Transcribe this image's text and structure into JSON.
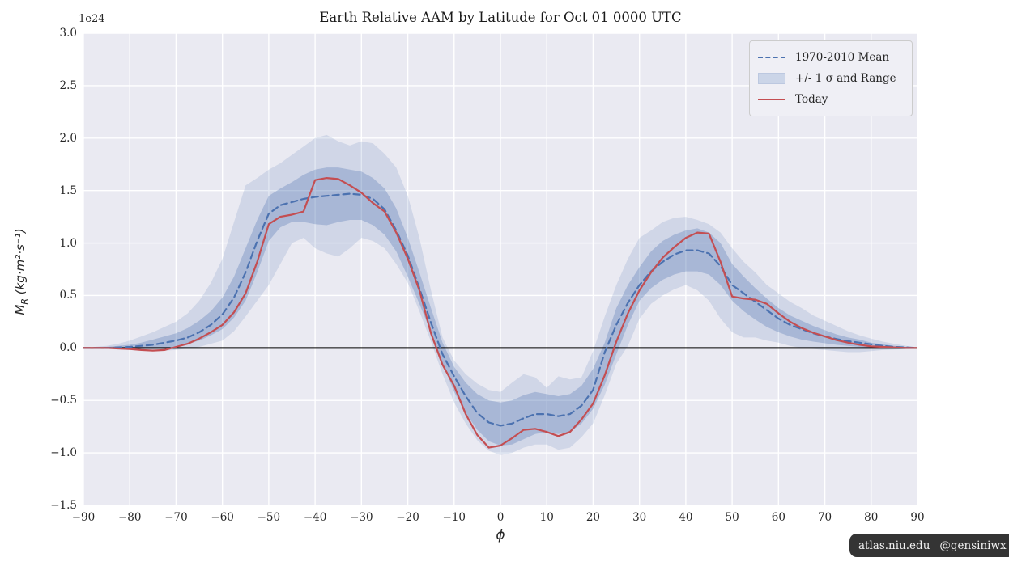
{
  "figure": {
    "watermark": {
      "site": "atlas.niu.edu",
      "handle": "@gensiniwx"
    }
  },
  "chart_data": {
    "type": "line",
    "title": "Earth Relative AAM by Latitude for Oct 01 0000 UTC",
    "xlabel": "ϕ",
    "ylabel_var": "M",
    "ylabel_sub": "R",
    "ylabel_units": " (kg·m²·s⁻¹)",
    "y_offset_label": "1e24",
    "xlim": [
      -90,
      90
    ],
    "ylim": [
      -1.5,
      3.0
    ],
    "grid": true,
    "legend_position": "upper right",
    "xticks": {
      "values": [
        -90,
        -80,
        -70,
        -60,
        -50,
        -40,
        -30,
        -20,
        -10,
        0,
        10,
        20,
        30,
        40,
        50,
        60,
        70,
        80,
        90
      ],
      "labels": [
        "−90",
        "−80",
        "−70",
        "−60",
        "−50",
        "−40",
        "−30",
        "−20",
        "−10",
        "0",
        "10",
        "20",
        "30",
        "40",
        "50",
        "60",
        "70",
        "80",
        "90"
      ]
    },
    "yticks": {
      "values": [
        3.0,
        2.5,
        2.0,
        1.5,
        1.0,
        0.5,
        0.0,
        -0.5,
        -1.0,
        -1.5
      ],
      "labels": [
        "3.0",
        "2.5",
        "2.0",
        "1.5",
        "1.0",
        "0.5",
        "0.0",
        "−0.5",
        "−1.0",
        "−1.5"
      ]
    },
    "x": [
      -90,
      -87.5,
      -85,
      -82.5,
      -80,
      -77.5,
      -75,
      -72.5,
      -70,
      -67.5,
      -65,
      -62.5,
      -60,
      -57.5,
      -55,
      -52.5,
      -50,
      -47.5,
      -45,
      -42.5,
      -40,
      -37.5,
      -35,
      -32.5,
      -30,
      -27.5,
      -25,
      -22.5,
      -20,
      -17.5,
      -15,
      -12.5,
      -10,
      -7.5,
      -5,
      -2.5,
      0,
      2.5,
      5,
      7.5,
      10,
      12.5,
      15,
      17.5,
      20,
      22.5,
      25,
      27.5,
      30,
      32.5,
      35,
      37.5,
      40,
      42.5,
      45,
      47.5,
      50,
      52.5,
      55,
      57.5,
      60,
      62.5,
      65,
      67.5,
      70,
      72.5,
      75,
      77.5,
      80,
      82.5,
      85,
      87.5,
      90
    ],
    "series": [
      {
        "name": "1970-2010 Mean",
        "style": "dashed",
        "color": "#4C72B0",
        "values": [
          0,
          0,
          0,
          0.005,
          0.01,
          0.02,
          0.03,
          0.05,
          0.07,
          0.1,
          0.15,
          0.22,
          0.32,
          0.48,
          0.72,
          1.02,
          1.28,
          1.36,
          1.39,
          1.42,
          1.44,
          1.45,
          1.46,
          1.47,
          1.46,
          1.42,
          1.32,
          1.12,
          0.88,
          0.57,
          0.24,
          -0.06,
          -0.27,
          -0.46,
          -0.62,
          -0.71,
          -0.74,
          -0.72,
          -0.67,
          -0.63,
          -0.63,
          -0.65,
          -0.63,
          -0.55,
          -0.4,
          -0.04,
          0.22,
          0.43,
          0.6,
          0.73,
          0.82,
          0.89,
          0.93,
          0.93,
          0.9,
          0.78,
          0.6,
          0.52,
          0.44,
          0.36,
          0.28,
          0.22,
          0.18,
          0.14,
          0.11,
          0.085,
          0.065,
          0.05,
          0.035,
          0.02,
          0.01,
          0.005,
          0
        ]
      },
      {
        "name": "Today",
        "style": "solid",
        "color": "#C44E52",
        "values": [
          0,
          0,
          0,
          -0.005,
          -0.01,
          -0.02,
          -0.025,
          -0.02,
          0.01,
          0.04,
          0.09,
          0.15,
          0.22,
          0.34,
          0.52,
          0.82,
          1.18,
          1.25,
          1.27,
          1.3,
          1.6,
          1.62,
          1.61,
          1.55,
          1.48,
          1.38,
          1.3,
          1.1,
          0.85,
          0.55,
          0.14,
          -0.16,
          -0.36,
          -0.63,
          -0.83,
          -0.95,
          -0.93,
          -0.86,
          -0.78,
          -0.77,
          -0.8,
          -0.84,
          -0.8,
          -0.68,
          -0.53,
          -0.26,
          0.06,
          0.33,
          0.55,
          0.72,
          0.86,
          0.96,
          1.05,
          1.1,
          1.09,
          0.82,
          0.49,
          0.47,
          0.46,
          0.42,
          0.33,
          0.25,
          0.19,
          0.145,
          0.11,
          0.075,
          0.05,
          0.03,
          0.015,
          0.01,
          0.005,
          0,
          0
        ]
      }
    ],
    "bands": [
      {
        "name": "Range",
        "upper": [
          0,
          0.01,
          0.02,
          0.04,
          0.07,
          0.11,
          0.15,
          0.2,
          0.25,
          0.33,
          0.45,
          0.62,
          0.85,
          1.2,
          1.55,
          1.62,
          1.7,
          1.76,
          1.84,
          1.92,
          2.0,
          2.03,
          1.97,
          1.93,
          1.97,
          1.95,
          1.85,
          1.72,
          1.45,
          1.05,
          0.55,
          0.1,
          -0.12,
          -0.25,
          -0.34,
          -0.4,
          -0.42,
          -0.33,
          -0.25,
          -0.28,
          -0.38,
          -0.27,
          -0.3,
          -0.28,
          -0.03,
          0.3,
          0.6,
          0.85,
          1.05,
          1.12,
          1.2,
          1.24,
          1.25,
          1.22,
          1.18,
          1.1,
          0.95,
          0.82,
          0.72,
          0.6,
          0.52,
          0.44,
          0.38,
          0.31,
          0.26,
          0.21,
          0.16,
          0.12,
          0.09,
          0.06,
          0.04,
          0.02,
          0
        ],
        "lower": [
          0,
          -0.005,
          -0.01,
          -0.015,
          -0.02,
          -0.025,
          -0.03,
          -0.025,
          -0.02,
          -0.005,
          0.01,
          0.04,
          0.07,
          0.16,
          0.3,
          0.45,
          0.6,
          0.8,
          1.0,
          1.05,
          0.95,
          0.9,
          0.87,
          0.95,
          1.05,
          1.02,
          0.95,
          0.8,
          0.62,
          0.35,
          0.06,
          -0.25,
          -0.52,
          -0.72,
          -0.88,
          -0.98,
          -1.02,
          -1.0,
          -0.95,
          -0.92,
          -0.92,
          -0.97,
          -0.95,
          -0.85,
          -0.72,
          -0.45,
          -0.15,
          0.02,
          0.28,
          0.42,
          0.5,
          0.56,
          0.6,
          0.55,
          0.45,
          0.28,
          0.15,
          0.1,
          0.1,
          0.07,
          0.05,
          0.02,
          0,
          -0.01,
          -0.02,
          -0.03,
          -0.04,
          -0.04,
          -0.03,
          -0.02,
          -0.015,
          -0.01,
          0
        ]
      },
      {
        "name": "+/- 1 sigma",
        "upper": [
          0,
          0.005,
          0.01,
          0.02,
          0.03,
          0.05,
          0.08,
          0.11,
          0.14,
          0.19,
          0.26,
          0.35,
          0.48,
          0.68,
          0.95,
          1.22,
          1.45,
          1.52,
          1.58,
          1.65,
          1.7,
          1.72,
          1.72,
          1.7,
          1.68,
          1.62,
          1.52,
          1.33,
          1.05,
          0.72,
          0.38,
          0.05,
          -0.18,
          -0.33,
          -0.44,
          -0.5,
          -0.52,
          -0.5,
          -0.45,
          -0.42,
          -0.44,
          -0.46,
          -0.44,
          -0.36,
          -0.2,
          0.05,
          0.38,
          0.6,
          0.77,
          0.92,
          1.02,
          1.08,
          1.12,
          1.14,
          1.1,
          1.0,
          0.8,
          0.68,
          0.57,
          0.47,
          0.38,
          0.31,
          0.26,
          0.21,
          0.17,
          0.13,
          0.1,
          0.08,
          0.05,
          0.035,
          0.02,
          0.01,
          0
        ],
        "lower": [
          0,
          0,
          -0.002,
          -0.004,
          -0.005,
          -0.008,
          -0.01,
          0,
          0.015,
          0.04,
          0.07,
          0.12,
          0.18,
          0.29,
          0.45,
          0.72,
          1.02,
          1.15,
          1.2,
          1.2,
          1.18,
          1.17,
          1.2,
          1.22,
          1.22,
          1.17,
          1.08,
          0.92,
          0.68,
          0.42,
          0.15,
          -0.14,
          -0.42,
          -0.62,
          -0.78,
          -0.89,
          -0.93,
          -0.92,
          -0.87,
          -0.82,
          -0.8,
          -0.82,
          -0.8,
          -0.72,
          -0.58,
          -0.35,
          -0.06,
          0.22,
          0.45,
          0.57,
          0.65,
          0.7,
          0.73,
          0.73,
          0.7,
          0.6,
          0.45,
          0.35,
          0.27,
          0.2,
          0.15,
          0.11,
          0.08,
          0.06,
          0.045,
          0.03,
          0.02,
          0.01,
          0.005,
          0.002,
          0,
          0,
          0
        ]
      }
    ],
    "legend": [
      {
        "label": "1970-2010 Mean",
        "glyph": "dashed-line"
      },
      {
        "label": "+/- 1 σ and Range",
        "glyph": "patch"
      },
      {
        "label": "Today",
        "glyph": "solid-line"
      }
    ],
    "colors": {
      "background": "#EAEAF2",
      "grid": "#FFFFFF",
      "zero_line": "#000000",
      "mean_line": "#4C72B0",
      "today_line": "#C44E52",
      "band_outer": "rgba(76,114,176,0.16)",
      "band_inner": "rgba(76,114,176,0.30)"
    }
  }
}
